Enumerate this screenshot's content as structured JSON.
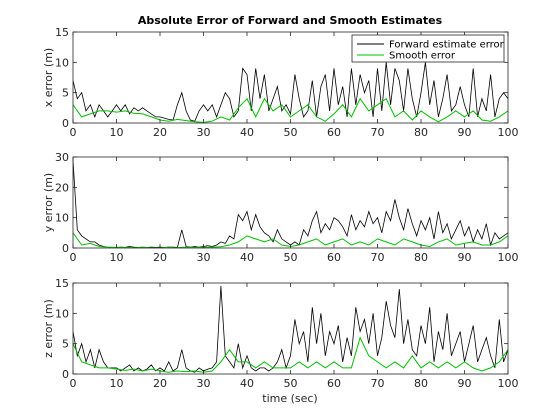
{
  "figure": {
    "title": "Absolute Error of Forward and Smooth Estimates",
    "xlabel": "time (sec)"
  },
  "colors": {
    "forward": "#000000",
    "smooth": "#00c000",
    "axes": "#262626"
  },
  "chart_data": [
    {
      "type": "line",
      "ylabel": "x error (m)",
      "xlim": [
        0,
        100
      ],
      "ylim": [
        0,
        15
      ],
      "xticks": [
        "0",
        "10",
        "20",
        "30",
        "40",
        "50",
        "60",
        "70",
        "80",
        "90",
        "100"
      ],
      "yticks": [
        "0",
        "5",
        "10",
        "15"
      ],
      "legend": {
        "placement": "top-right",
        "entries": [
          "Forward estimate error",
          "Smooth error"
        ]
      },
      "series": [
        {
          "name": "Forward estimate error",
          "x": [
            0,
            1,
            2,
            3,
            4,
            5,
            6,
            7,
            8,
            9,
            10,
            11,
            12,
            13,
            14,
            15,
            16,
            17,
            18,
            19,
            20,
            21,
            22,
            23,
            24,
            25,
            26,
            27,
            28,
            29,
            30,
            31,
            32,
            33,
            34,
            35,
            36,
            37,
            38,
            39,
            40,
            41,
            42,
            43,
            44,
            45,
            46,
            47,
            48,
            49,
            50,
            51,
            52,
            53,
            54,
            55,
            56,
            57,
            58,
            59,
            60,
            61,
            62,
            63,
            64,
            65,
            66,
            67,
            68,
            69,
            70,
            71,
            72,
            73,
            74,
            75,
            76,
            77,
            78,
            79,
            80,
            81,
            82,
            83,
            84,
            85,
            86,
            87,
            88,
            89,
            90,
            91,
            92,
            93,
            94,
            95,
            96,
            97,
            98,
            99,
            100
          ],
          "y": [
            7,
            4,
            5,
            2,
            3,
            1,
            3,
            2,
            1,
            2,
            3,
            2,
            3,
            1.5,
            2.5,
            2,
            2.5,
            2,
            1.5,
            1,
            1,
            0.8,
            0.6,
            0.5,
            3,
            5,
            2,
            0.5,
            0.3,
            2,
            3,
            2,
            3,
            1,
            3,
            5,
            4,
            1,
            2,
            9,
            8,
            2,
            9,
            4,
            8,
            2,
            4,
            6,
            2,
            3,
            1.5,
            8,
            4,
            1,
            2,
            7,
            1,
            6,
            8,
            2,
            9,
            3,
            6,
            1,
            9,
            3,
            8,
            5,
            7,
            1,
            9,
            2,
            10,
            3,
            9,
            7,
            2,
            9,
            4,
            1,
            5,
            10,
            3,
            7,
            1,
            4,
            8,
            2,
            3,
            6,
            3,
            1,
            9,
            1,
            4,
            2,
            8,
            1,
            4,
            5,
            4
          ]
        },
        {
          "name": "Smooth error",
          "x": [
            0,
            2,
            4,
            6,
            8,
            10,
            12,
            14,
            16,
            18,
            20,
            22,
            24,
            26,
            28,
            30,
            32,
            34,
            36,
            38,
            40,
            42,
            44,
            46,
            48,
            50,
            52,
            54,
            56,
            58,
            60,
            62,
            64,
            66,
            68,
            70,
            72,
            74,
            76,
            78,
            80,
            82,
            84,
            86,
            88,
            90,
            92,
            94,
            96,
            98,
            100
          ],
          "y": [
            3,
            1,
            1.5,
            2,
            2,
            1.8,
            2,
            1.6,
            1.5,
            1,
            0.5,
            0.3,
            0.6,
            0.4,
            0.2,
            0.1,
            0.3,
            1,
            0.5,
            2.5,
            4,
            1,
            4,
            2,
            3,
            1,
            2,
            3,
            1,
            0.3,
            1.5,
            3,
            1,
            4,
            2,
            3,
            4,
            1,
            2,
            0.5,
            2,
            1,
            0.2,
            1,
            2,
            1,
            2,
            0.5,
            0.3,
            1,
            2
          ]
        }
      ]
    },
    {
      "type": "line",
      "ylabel": "y error (m)",
      "xlim": [
        0,
        100
      ],
      "ylim": [
        0,
        30
      ],
      "xticks": [
        "0",
        "10",
        "20",
        "30",
        "40",
        "50",
        "60",
        "70",
        "80",
        "90",
        "100"
      ],
      "yticks": [
        "0",
        "10",
        "20",
        "30"
      ],
      "series": [
        {
          "name": "Forward estimate error",
          "x": [
            0,
            1,
            2,
            3,
            4,
            5,
            6,
            7,
            8,
            9,
            10,
            11,
            12,
            13,
            14,
            15,
            16,
            17,
            18,
            19,
            20,
            21,
            22,
            23,
            24,
            25,
            26,
            27,
            28,
            29,
            30,
            31,
            32,
            33,
            34,
            35,
            36,
            37,
            38,
            39,
            40,
            41,
            42,
            43,
            44,
            45,
            46,
            47,
            48,
            49,
            50,
            51,
            52,
            53,
            54,
            55,
            56,
            57,
            58,
            59,
            60,
            61,
            62,
            63,
            64,
            65,
            66,
            67,
            68,
            69,
            70,
            71,
            72,
            73,
            74,
            75,
            76,
            77,
            78,
            79,
            80,
            81,
            82,
            83,
            84,
            85,
            86,
            87,
            88,
            89,
            90,
            91,
            92,
            93,
            94,
            95,
            96,
            97,
            98,
            99,
            100
          ],
          "y": [
            29,
            6,
            4,
            3,
            2,
            2,
            1,
            0.5,
            0.3,
            0.2,
            0.2,
            0.3,
            0.2,
            0.5,
            0.3,
            0.2,
            0.3,
            0.2,
            0.3,
            0.2,
            0.3,
            0.2,
            0.3,
            0.3,
            0.2,
            6,
            0.5,
            0.3,
            0.5,
            0.3,
            0.5,
            0.8,
            0.5,
            1,
            2,
            1.5,
            4,
            3,
            11,
            9,
            12,
            6,
            11,
            7,
            5,
            4,
            2,
            6,
            3,
            2,
            1,
            2,
            1,
            6,
            4,
            9,
            12,
            5,
            8,
            6,
            10,
            9,
            7,
            4,
            11,
            6,
            9,
            7,
            12,
            8,
            10,
            5,
            12,
            9,
            16,
            10,
            6,
            13,
            8,
            4,
            9,
            6,
            10,
            3,
            12,
            5,
            8,
            3,
            6,
            9,
            4,
            7,
            2,
            6,
            3,
            8,
            1,
            5,
            3,
            4,
            5
          ]
        },
        {
          "name": "Smooth error",
          "x": [
            0,
            2,
            4,
            6,
            8,
            10,
            12,
            14,
            16,
            18,
            20,
            22,
            24,
            26,
            28,
            30,
            32,
            34,
            36,
            38,
            40,
            42,
            44,
            46,
            48,
            50,
            52,
            54,
            56,
            58,
            60,
            62,
            64,
            66,
            68,
            70,
            72,
            74,
            76,
            78,
            80,
            82,
            84,
            86,
            88,
            90,
            92,
            94,
            96,
            98,
            100
          ],
          "y": [
            5,
            1,
            1.5,
            0.5,
            0.3,
            0.2,
            0.2,
            0.1,
            0.2,
            0.1,
            0.1,
            0.2,
            0.1,
            0.3,
            0.2,
            0.2,
            0.3,
            0.4,
            1,
            2,
            4,
            3,
            2,
            3,
            1,
            0.5,
            1,
            2,
            3,
            1,
            2,
            3,
            1,
            2,
            1,
            3,
            2,
            1,
            3,
            2,
            1,
            0.5,
            2,
            3,
            1,
            1.5,
            2,
            1,
            1,
            2,
            4
          ]
        }
      ]
    },
    {
      "type": "line",
      "ylabel": "z error (m)",
      "xlim": [
        0,
        100
      ],
      "ylim": [
        0,
        15
      ],
      "xticks": [
        "0",
        "10",
        "20",
        "30",
        "40",
        "50",
        "60",
        "70",
        "80",
        "90",
        "100"
      ],
      "yticks": [
        "0",
        "5",
        "10",
        "15"
      ],
      "series": [
        {
          "name": "Forward estimate error",
          "x": [
            0,
            1,
            2,
            3,
            4,
            5,
            6,
            7,
            8,
            9,
            10,
            11,
            12,
            13,
            14,
            15,
            16,
            17,
            18,
            19,
            20,
            21,
            22,
            23,
            24,
            25,
            26,
            27,
            28,
            29,
            30,
            31,
            32,
            33,
            34,
            35,
            36,
            37,
            38,
            39,
            40,
            41,
            42,
            43,
            44,
            45,
            46,
            47,
            48,
            49,
            50,
            51,
            52,
            53,
            54,
            55,
            56,
            57,
            58,
            59,
            60,
            61,
            62,
            63,
            64,
            65,
            66,
            67,
            68,
            69,
            70,
            71,
            72,
            73,
            74,
            75,
            76,
            77,
            78,
            79,
            80,
            81,
            82,
            83,
            84,
            85,
            86,
            87,
            88,
            89,
            90,
            91,
            92,
            93,
            94,
            95,
            96,
            97,
            98,
            99,
            100
          ],
          "y": [
            7,
            3,
            5,
            2,
            4,
            1,
            4,
            2,
            1,
            1,
            1,
            0.5,
            1,
            1.5,
            0.5,
            1,
            0.5,
            0.8,
            1.5,
            0.5,
            1,
            0.5,
            2,
            0.5,
            1,
            4,
            1,
            0.5,
            0.3,
            1,
            0.5,
            0.8,
            1,
            2,
            14.5,
            3,
            2,
            1,
            5,
            1,
            3,
            1,
            0.5,
            1,
            1,
            0.5,
            1,
            2,
            4,
            1,
            3,
            9,
            5,
            7,
            2,
            11,
            5,
            10,
            3,
            7,
            5,
            8,
            2,
            6,
            3,
            11,
            7,
            9,
            5,
            10,
            3,
            6,
            12,
            8,
            6,
            14,
            5,
            9,
            4,
            3,
            8,
            5,
            11,
            2,
            7,
            4,
            10,
            3,
            5,
            7,
            2,
            5,
            8,
            2,
            4,
            6,
            3,
            1,
            9,
            2,
            4
          ]
        },
        {
          "name": "Smooth error",
          "x": [
            0,
            2,
            4,
            6,
            8,
            10,
            12,
            14,
            16,
            18,
            20,
            22,
            24,
            26,
            28,
            30,
            32,
            34,
            36,
            38,
            40,
            42,
            44,
            46,
            48,
            50,
            52,
            54,
            56,
            58,
            60,
            62,
            64,
            66,
            68,
            70,
            72,
            74,
            76,
            78,
            80,
            82,
            84,
            86,
            88,
            90,
            92,
            94,
            96,
            98,
            100
          ],
          "y": [
            5,
            2,
            1.5,
            1,
            1,
            0.8,
            0.6,
            0.8,
            0.5,
            0.8,
            0.5,
            0.3,
            0.5,
            0.4,
            0.5,
            0.3,
            0.5,
            2,
            4,
            2,
            2,
            1,
            2,
            1,
            1,
            1,
            2,
            1,
            2,
            1,
            2,
            1,
            1,
            6,
            3,
            2,
            1,
            2,
            1,
            3,
            1,
            2,
            1,
            2,
            1,
            2,
            1,
            0.5,
            1,
            2,
            4
          ]
        }
      ]
    }
  ]
}
